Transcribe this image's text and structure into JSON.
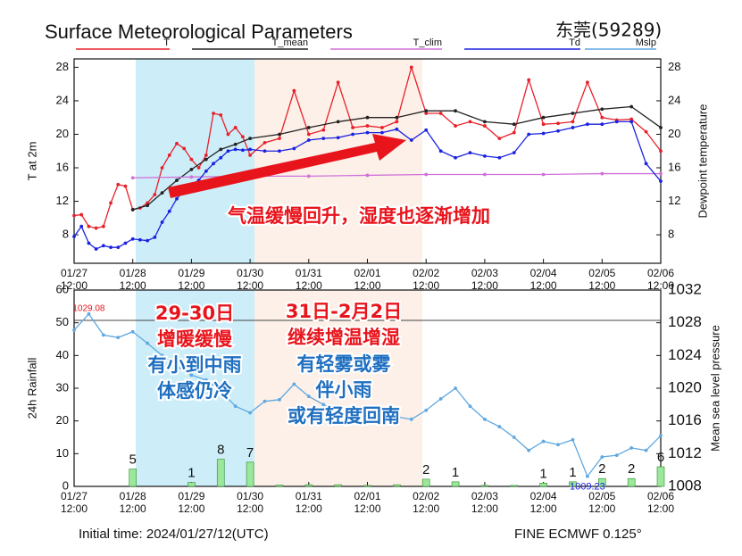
{
  "title": "Surface Meteorological Parameters",
  "station": "东莞(59289)",
  "chart_data": [
    {
      "type": "line",
      "ylabel": "T at 2m",
      "y2label": "Dewpoint temperature",
      "xlim": [
        0,
        240
      ],
      "xticks": [
        {
          "value": 0,
          "label": [
            "01/27",
            "12:00"
          ]
        },
        {
          "value": 24,
          "label": [
            "01/28",
            "12:00"
          ]
        },
        {
          "value": 48,
          "label": [
            "01/29",
            "12:00"
          ]
        },
        {
          "value": 72,
          "label": [
            "01/30",
            "12:00"
          ]
        },
        {
          "value": 96,
          "label": [
            "01/31",
            "12:00"
          ]
        },
        {
          "value": 120,
          "label": [
            "02/01",
            "12:00"
          ]
        },
        {
          "value": 144,
          "label": [
            "02/02",
            "12:00"
          ]
        },
        {
          "value": 168,
          "label": [
            "02/03",
            "12:00"
          ]
        },
        {
          "value": 192,
          "label": [
            "02/04",
            "12:00"
          ]
        },
        {
          "value": 216,
          "label": [
            "02/05",
            "12:00"
          ]
        },
        {
          "value": 240,
          "label": [
            "02/06",
            "12:00"
          ]
        }
      ],
      "ylim": [
        4.6,
        29
      ],
      "yticks": [
        8,
        12,
        16,
        20,
        24,
        28
      ],
      "y2lim": [
        4.6,
        29
      ],
      "y2ticks": [
        8,
        12,
        16,
        20,
        24,
        28
      ],
      "series": [
        {
          "name": "T",
          "color": "#e8202a",
          "x": [
            0,
            3,
            6,
            9,
            12,
            15,
            18,
            21,
            24,
            27,
            30,
            33,
            36,
            39,
            42,
            45,
            48,
            51,
            54,
            57,
            60,
            63,
            66,
            69,
            72,
            78,
            84,
            90,
            96,
            102,
            108,
            114,
            120,
            126,
            132,
            138,
            144,
            150,
            156,
            162,
            168,
            174,
            180,
            186,
            192,
            198,
            204,
            210,
            216,
            222,
            228,
            234,
            240
          ],
          "values": [
            10.3,
            10.4,
            9.0,
            8.8,
            9.0,
            11.8,
            14.0,
            13.8,
            11.0,
            11.2,
            11.8,
            12.8,
            16.0,
            17.5,
            18.9,
            18.3,
            17.0,
            16.0,
            17.5,
            22.5,
            22.3,
            20.0,
            20.8,
            19.7,
            17.5,
            19.0,
            19.5,
            25.2,
            20.0,
            20.5,
            26.2,
            20.8,
            21.0,
            20.8,
            21.5,
            28.0,
            22.5,
            22.5,
            21.0,
            21.5,
            21.0,
            19.5,
            20.2,
            26.5,
            21.2,
            21.3,
            21.5,
            26.2,
            22.0,
            21.7,
            21.8,
            20.3,
            18.0
          ]
        },
        {
          "name": "T_mean",
          "color": "#222222",
          "x": [
            24,
            30,
            36,
            42,
            48,
            54,
            60,
            66,
            72,
            84,
            96,
            108,
            120,
            132,
            144,
            156,
            168,
            180,
            192,
            204,
            216,
            228,
            240
          ],
          "values": [
            11.0,
            11.5,
            13.0,
            14.5,
            15.8,
            17.0,
            18.2,
            18.8,
            19.5,
            20.0,
            20.8,
            21.5,
            22.0,
            22.0,
            22.8,
            22.8,
            21.5,
            21.2,
            22.0,
            22.5,
            23.0,
            23.3,
            20.8
          ]
        },
        {
          "name": "T_clim",
          "color": "#d070d8",
          "x": [
            24,
            48,
            72,
            96,
            120,
            144,
            168,
            192,
            216,
            240
          ],
          "values": [
            14.8,
            14.9,
            15.0,
            15.0,
            15.1,
            15.2,
            15.2,
            15.2,
            15.3,
            15.3
          ]
        },
        {
          "name": "Td",
          "color": "#1a22e0",
          "axis": "y2",
          "x": [
            0,
            3,
            6,
            9,
            12,
            15,
            18,
            21,
            24,
            27,
            30,
            33,
            36,
            39,
            42,
            45,
            48,
            51,
            54,
            57,
            60,
            63,
            66,
            69,
            72,
            78,
            84,
            90,
            96,
            102,
            108,
            114,
            120,
            126,
            132,
            138,
            144,
            150,
            156,
            162,
            168,
            174,
            180,
            186,
            192,
            198,
            204,
            210,
            216,
            222,
            228,
            234,
            240
          ],
          "values": [
            7.8,
            9.0,
            7.0,
            6.3,
            6.7,
            6.5,
            6.5,
            7.0,
            7.5,
            7.4,
            7.3,
            7.7,
            9.5,
            10.8,
            12.3,
            13.3,
            14.0,
            14.5,
            15.6,
            16.5,
            17.2,
            18.0,
            18.2,
            18.1,
            18.2,
            18.0,
            18.0,
            18.3,
            19.3,
            19.5,
            19.6,
            20.0,
            20.2,
            20.2,
            20.6,
            19.3,
            20.5,
            18.0,
            17.2,
            17.8,
            17.4,
            17.2,
            17.8,
            20.0,
            20.1,
            20.4,
            20.8,
            21.2,
            21.2,
            21.5,
            21.5,
            16.5,
            14.4
          ]
        }
      ],
      "annotations": [
        {
          "text": "气温缓慢回升，湿度也逐渐增加",
          "color": "#e8141c"
        }
      ]
    },
    {
      "type": "bar",
      "ylabel": "24h Rainfall",
      "y2label": "Mean sea level pressure",
      "xlim": [
        0,
        240
      ],
      "xticks": [
        {
          "value": 0,
          "label": [
            "01/27",
            "12:00"
          ]
        },
        {
          "value": 24,
          "label": [
            "01/28",
            "12:00"
          ]
        },
        {
          "value": 48,
          "label": [
            "01/29",
            "12:00"
          ]
        },
        {
          "value": 72,
          "label": [
            "01/30",
            "12:00"
          ]
        },
        {
          "value": 96,
          "label": [
            "01/31",
            "12:00"
          ]
        },
        {
          "value": 120,
          "label": [
            "02/01",
            "12:00"
          ]
        },
        {
          "value": 144,
          "label": [
            "02/02",
            "12:00"
          ]
        },
        {
          "value": 168,
          "label": [
            "02/03",
            "12:00"
          ]
        },
        {
          "value": 192,
          "label": [
            "02/04",
            "12:00"
          ]
        },
        {
          "value": 216,
          "label": [
            "02/05",
            "12:00"
          ]
        },
        {
          "value": 240,
          "label": [
            "02/06",
            "12:00"
          ]
        }
      ],
      "ylim": [
        0,
        60
      ],
      "yticks": [
        0,
        10,
        20,
        30,
        40,
        50,
        60
      ],
      "y2lim": [
        1008,
        1032
      ],
      "y2ticks": [
        1008,
        1012,
        1016,
        1020,
        1024,
        1028,
        1032
      ],
      "series": [
        {
          "type": "bar",
          "color": "#9be79b",
          "x": [
            24,
            48,
            60,
            72,
            84,
            96,
            108,
            120,
            132,
            144,
            156,
            168,
            180,
            192,
            204,
            216,
            228,
            240
          ],
          "values": [
            5.3,
            1.2,
            8.3,
            7.4,
            0.4,
            0.5,
            0.5,
            0.3,
            0.5,
            2.2,
            1.4,
            0.3,
            0.3,
            1.0,
            1.4,
            2.4,
            2.4,
            6.0
          ],
          "value_labels": [
            "5",
            "1",
            "8",
            "7",
            null,
            null,
            null,
            null,
            null,
            "2",
            "1",
            null,
            null,
            "1",
            "1",
            "2",
            "2",
            "6"
          ]
        },
        {
          "name": "Mslp",
          "type": "line",
          "axis": "y2",
          "color": "#5fa8e0",
          "x": [
            0,
            6,
            12,
            18,
            24,
            30,
            36,
            42,
            48,
            54,
            60,
            66,
            72,
            78,
            84,
            90,
            96,
            102,
            108,
            114,
            120,
            126,
            132,
            138,
            144,
            150,
            156,
            162,
            168,
            174,
            180,
            186,
            192,
            198,
            204,
            210,
            216,
            222,
            228,
            234,
            240
          ],
          "values": [
            1027.1,
            1029.08,
            1026.5,
            1026.2,
            1026.9,
            1025.5,
            1024.0,
            1022.7,
            1021.6,
            1021.0,
            1019.7,
            1017.8,
            1017.0,
            1018.4,
            1018.6,
            1020.5,
            1019.0,
            1018.0,
            1017.0,
            1016.7,
            1016.2,
            1017.0,
            1016.5,
            1016.2,
            1017.3,
            1018.7,
            1020.0,
            1017.8,
            1016.2,
            1015.3,
            1014.0,
            1012.4,
            1013.5,
            1013.1,
            1013.7,
            1009.23,
            1011.6,
            1011.8,
            1012.7,
            1012.4,
            1014.2
          ],
          "value_labels": [
            null,
            "1029.08",
            null,
            null,
            null,
            null,
            null,
            null,
            null,
            null,
            null,
            null,
            null,
            null,
            null,
            null,
            null,
            null,
            null,
            null,
            null,
            null,
            null,
            null,
            null,
            null,
            null,
            null,
            null,
            null,
            null,
            null,
            null,
            null,
            null,
            "1009.23",
            null,
            null,
            null,
            null,
            null
          ]
        }
      ],
      "annotations": [
        {
          "text": "29-30日",
          "color": "#e8141c"
        },
        {
          "text": "增暖缓慢",
          "color": "#e8141c"
        },
        {
          "text": "有小到中雨",
          "color": "#1f6fc0"
        },
        {
          "text": "体感仍冷",
          "color": "#1f6fc0"
        },
        {
          "text": "31日-2月2日",
          "color": "#e8141c"
        },
        {
          "text": "继续增温增湿",
          "color": "#e8141c"
        },
        {
          "text": "有轻雾或雾",
          "color": "#1f6fc0"
        },
        {
          "text": "伴小雨",
          "color": "#1f6fc0"
        },
        {
          "text": "或有轻度回南",
          "color": "#1f6fc0"
        }
      ]
    }
  ],
  "footer": {
    "left": "Initial time: 2024/01/27/12(UTC)",
    "right": "FINE ECMWF 0.125°"
  }
}
